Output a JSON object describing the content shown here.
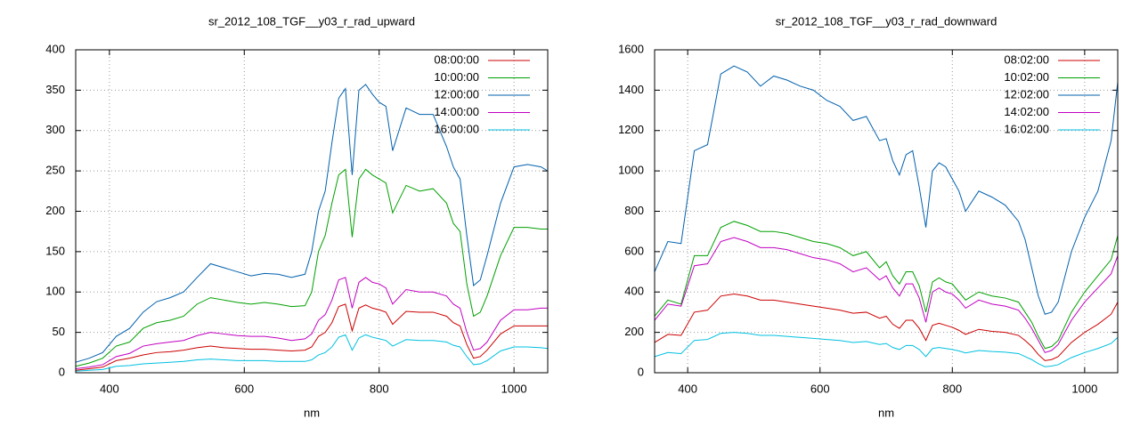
{
  "chart_data": [
    {
      "type": "line",
      "title": "sr_2012_108_TGF__y03_r_rad_upward",
      "x_label": "nm",
      "x": [
        350,
        370,
        390,
        410,
        430,
        450,
        470,
        490,
        510,
        530,
        550,
        570,
        590,
        610,
        630,
        650,
        670,
        690,
        700,
        710,
        720,
        730,
        740,
        750,
        760,
        770,
        780,
        790,
        800,
        810,
        820,
        840,
        860,
        880,
        900,
        910,
        920,
        930,
        940,
        950,
        960,
        980,
        1000,
        1020,
        1040,
        1050
      ],
      "xlim": [
        350,
        1050
      ],
      "xticks": [
        400,
        600,
        800,
        1000
      ],
      "ylim": [
        0,
        400
      ],
      "yticks": [
        0,
        50,
        100,
        150,
        200,
        250,
        300,
        350,
        400
      ],
      "grid": true,
      "legend": "top-right",
      "series": [
        {
          "name": "08:00:00",
          "color": "#cc0000",
          "values": [
            3,
            5,
            7,
            15,
            18,
            22,
            25,
            26,
            28,
            31,
            33,
            31,
            30,
            29,
            29,
            28,
            27,
            28,
            32,
            45,
            50,
            62,
            82,
            85,
            52,
            80,
            84,
            80,
            78,
            75,
            60,
            76,
            75,
            75,
            70,
            62,
            58,
            35,
            18,
            20,
            28,
            48,
            58,
            58,
            58,
            58
          ]
        },
        {
          "name": "10:00:00",
          "color": "#00a000",
          "values": [
            8,
            12,
            18,
            33,
            38,
            55,
            62,
            65,
            70,
            85,
            93,
            90,
            87,
            85,
            87,
            85,
            82,
            83,
            100,
            150,
            170,
            210,
            245,
            252,
            168,
            240,
            252,
            245,
            240,
            235,
            198,
            232,
            225,
            228,
            210,
            185,
            175,
            110,
            70,
            75,
            95,
            145,
            180,
            180,
            178,
            178
          ]
        },
        {
          "name": "12:00:00",
          "color": "#0060ad",
          "values": [
            13,
            18,
            25,
            45,
            55,
            75,
            88,
            93,
            100,
            118,
            135,
            130,
            125,
            120,
            123,
            122,
            118,
            122,
            150,
            200,
            225,
            285,
            340,
            352,
            245,
            350,
            357,
            345,
            335,
            330,
            275,
            328,
            320,
            320,
            280,
            255,
            240,
            170,
            108,
            115,
            145,
            210,
            255,
            258,
            255,
            250
          ]
        },
        {
          "name": "14:00:00",
          "color": "#c000c0",
          "values": [
            5,
            7,
            10,
            20,
            24,
            33,
            36,
            38,
            40,
            46,
            50,
            48,
            46,
            45,
            45,
            43,
            40,
            42,
            48,
            65,
            72,
            90,
            115,
            118,
            80,
            112,
            118,
            112,
            110,
            105,
            85,
            103,
            100,
            100,
            95,
            85,
            80,
            50,
            28,
            30,
            38,
            65,
            78,
            78,
            80,
            80
          ]
        },
        {
          "name": "16:00:00",
          "color": "#00c0e0",
          "values": [
            2,
            3,
            4,
            8,
            9,
            11,
            12,
            13,
            14,
            16,
            17,
            16,
            15,
            15,
            15,
            14,
            14,
            14,
            16,
            22,
            25,
            32,
            44,
            47,
            28,
            43,
            47,
            44,
            42,
            40,
            33,
            41,
            40,
            40,
            38,
            34,
            32,
            20,
            10,
            11,
            15,
            27,
            32,
            32,
            31,
            30
          ]
        }
      ]
    },
    {
      "type": "line",
      "title": "sr_2012_108_TGF__y03_r_rad_downward",
      "x_label": "nm",
      "x": [
        350,
        370,
        390,
        410,
        430,
        450,
        470,
        490,
        510,
        530,
        550,
        570,
        590,
        610,
        630,
        650,
        670,
        690,
        700,
        710,
        720,
        730,
        740,
        750,
        760,
        770,
        780,
        790,
        800,
        810,
        820,
        840,
        860,
        880,
        900,
        910,
        920,
        930,
        940,
        950,
        960,
        980,
        1000,
        1020,
        1040,
        1050
      ],
      "xlim": [
        350,
        1050
      ],
      "xticks": [
        400,
        600,
        800,
        1000
      ],
      "ylim": [
        0,
        1600
      ],
      "yticks": [
        0,
        200,
        400,
        600,
        800,
        1000,
        1200,
        1400,
        1600
      ],
      "grid": true,
      "legend": "top-right",
      "series": [
        {
          "name": "08:02:00",
          "color": "#cc0000",
          "values": [
            150,
            190,
            185,
            300,
            310,
            380,
            390,
            380,
            360,
            360,
            350,
            340,
            330,
            320,
            310,
            295,
            300,
            270,
            280,
            240,
            220,
            260,
            260,
            220,
            160,
            235,
            245,
            235,
            225,
            210,
            190,
            215,
            205,
            200,
            185,
            160,
            130,
            90,
            60,
            65,
            80,
            150,
            200,
            240,
            290,
            350
          ]
        },
        {
          "name": "10:02:00",
          "color": "#00a000",
          "values": [
            280,
            360,
            340,
            580,
            580,
            720,
            750,
            730,
            700,
            700,
            690,
            670,
            650,
            640,
            620,
            580,
            600,
            520,
            550,
            480,
            440,
            500,
            500,
            430,
            300,
            450,
            470,
            450,
            440,
            400,
            360,
            400,
            380,
            370,
            350,
            300,
            250,
            180,
            120,
            130,
            160,
            300,
            400,
            480,
            560,
            680
          ]
        },
        {
          "name": "12:02:00",
          "color": "#0060ad",
          "values": [
            500,
            650,
            640,
            1100,
            1130,
            1480,
            1520,
            1490,
            1420,
            1470,
            1450,
            1420,
            1400,
            1350,
            1320,
            1250,
            1270,
            1150,
            1160,
            1050,
            980,
            1080,
            1100,
            920,
            720,
            1000,
            1040,
            1020,
            960,
            900,
            800,
            900,
            870,
            830,
            750,
            660,
            520,
            380,
            290,
            300,
            350,
            600,
            770,
            900,
            1150,
            1440
          ]
        },
        {
          "name": "14:02:00",
          "color": "#c000c0",
          "values": [
            260,
            340,
            330,
            530,
            540,
            650,
            670,
            650,
            620,
            620,
            610,
            590,
            570,
            560,
            540,
            500,
            520,
            460,
            480,
            420,
            380,
            440,
            440,
            370,
            250,
            400,
            420,
            400,
            390,
            360,
            320,
            360,
            340,
            330,
            310,
            270,
            220,
            160,
            100,
            110,
            140,
            260,
            350,
            420,
            490,
            580
          ]
        },
        {
          "name": "16:02:00",
          "color": "#00c0e0",
          "values": [
            80,
            100,
            95,
            160,
            165,
            195,
            200,
            195,
            185,
            185,
            180,
            175,
            170,
            165,
            160,
            150,
            155,
            140,
            145,
            125,
            115,
            135,
            135,
            115,
            80,
            120,
            125,
            120,
            115,
            108,
            98,
            110,
            105,
            102,
            95,
            80,
            65,
            45,
            30,
            33,
            40,
            75,
            100,
            120,
            145,
            175
          ]
        }
      ]
    }
  ]
}
